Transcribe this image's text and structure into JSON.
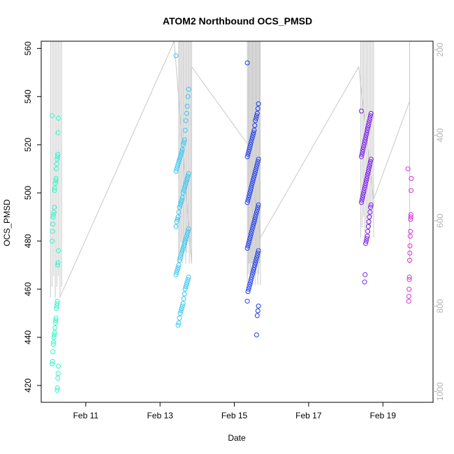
{
  "chart_data": {
    "type": "scatter",
    "title": "ATOM2 Northbound OCS_PMSD",
    "xlabel": "Date",
    "ylabel": "OCS_PMSD",
    "ylim": [
      413,
      563
    ],
    "y2lim": [
      1025,
      180
    ],
    "xlim": [
      9.8,
      20.35
    ],
    "x_ticks": [
      {
        "value": 11,
        "label": "Feb 11"
      },
      {
        "value": 13,
        "label": "Feb 13"
      },
      {
        "value": 15,
        "label": "Feb 15"
      },
      {
        "value": 17,
        "label": "Feb 17"
      },
      {
        "value": 19,
        "label": "Feb 19"
      }
    ],
    "y_ticks": [
      420,
      440,
      460,
      480,
      500,
      520,
      540,
      560
    ],
    "y2_ticks": [
      200,
      400,
      600,
      800,
      1000
    ],
    "grid": false,
    "legend": "none",
    "point_series": [
      {
        "x_center": 10.18,
        "x_spread": 0.17,
        "color": "#2ef5cb",
        "values": [
          532,
          531,
          525,
          516,
          515,
          514,
          512,
          510,
          506,
          505,
          504,
          502,
          501,
          494,
          492,
          491,
          490,
          487,
          484,
          480,
          476,
          471,
          470,
          455,
          454,
          453,
          452,
          448,
          447,
          446,
          444,
          442,
          441,
          440,
          438,
          437,
          434,
          430,
          429,
          428,
          425,
          423,
          419,
          418
        ]
      },
      {
        "x_center": 13.6,
        "x_spread": 0.34,
        "color": "#36c6f0",
        "values": [
          557,
          543,
          540,
          536,
          533,
          530,
          526,
          522,
          521,
          520,
          518,
          517,
          516,
          515,
          514,
          513,
          512,
          511,
          510,
          509,
          508,
          507,
          506,
          505,
          504,
          503,
          502,
          501,
          500,
          498,
          497,
          496,
          495,
          494,
          492,
          490,
          489,
          488,
          486,
          485,
          484,
          483,
          482,
          481,
          480,
          479,
          478,
          477,
          476,
          475,
          474,
          473,
          472,
          470,
          469,
          468,
          467,
          466,
          465,
          464,
          463,
          462,
          461,
          460,
          458,
          456,
          454,
          453,
          452,
          451,
          450,
          448,
          446,
          445
        ]
      },
      {
        "x_center": 15.5,
        "x_spread": 0.3,
        "color": "#1f3dea",
        "values": [
          554,
          537,
          535,
          533,
          532,
          531,
          530,
          528,
          526,
          525,
          524,
          523,
          522,
          521,
          520,
          519,
          518,
          517,
          516,
          515,
          514,
          513,
          512,
          511,
          510,
          509,
          508,
          507,
          506,
          505,
          504,
          503,
          502,
          501,
          500,
          499,
          498,
          497,
          496,
          495,
          494,
          493,
          492,
          491,
          490,
          489,
          488,
          487,
          486,
          485,
          484,
          483,
          482,
          481,
          480,
          479,
          478,
          477,
          476,
          475,
          474,
          473,
          472,
          471,
          470,
          469,
          468,
          467,
          466,
          465,
          464,
          463,
          462,
          461,
          460,
          459,
          455,
          453,
          451,
          449,
          441
        ]
      },
      {
        "x_center": 18.55,
        "x_spread": 0.26,
        "color": "#7a1fe6",
        "values": [
          534,
          533,
          532,
          531,
          530,
          529,
          528,
          527,
          526,
          525,
          524,
          523,
          522,
          521,
          520,
          519,
          518,
          517,
          516,
          515,
          514,
          513,
          512,
          511,
          510,
          509,
          508,
          507,
          506,
          505,
          504,
          503,
          502,
          501,
          500,
          499,
          498,
          497,
          496,
          495,
          494,
          492,
          490,
          488,
          486,
          484,
          482,
          481,
          480,
          479,
          466,
          463
        ]
      },
      {
        "x_center": 19.72,
        "x_spread": 0.09,
        "color": "#d62fd6",
        "values": [
          510,
          506,
          501,
          491,
          490,
          489,
          484,
          482,
          478,
          475,
          472,
          465,
          464,
          460,
          457,
          455
        ]
      }
    ],
    "depth_line": {
      "color": "#c8c8c8",
      "segments": [
        {
          "x0": 10.05,
          "x1": 10.35,
          "top": 180,
          "bottom": 780,
          "count": 8
        },
        {
          "x0": 13.5,
          "x1": 13.85,
          "top": 180,
          "bottom": 700,
          "count": 12
        },
        {
          "x0": 15.35,
          "x1": 15.7,
          "top": 180,
          "bottom": 750,
          "count": 16
        },
        {
          "x0": 18.4,
          "x1": 18.75,
          "top": 180,
          "bottom": 640,
          "count": 10
        },
        {
          "x0": 19.72,
          "x1": 19.72,
          "top": 180,
          "bottom": 700,
          "count": 1
        }
      ],
      "path": [
        [
          10.3,
          780
        ],
        [
          13.38,
          180
        ],
        [
          13.85,
          700
        ],
        [
          13.85,
          240
        ],
        [
          15.35,
          420
        ],
        [
          15.7,
          640
        ],
        [
          18.35,
          240
        ],
        [
          18.75,
          550
        ],
        [
          19.72,
          320
        ]
      ]
    }
  }
}
